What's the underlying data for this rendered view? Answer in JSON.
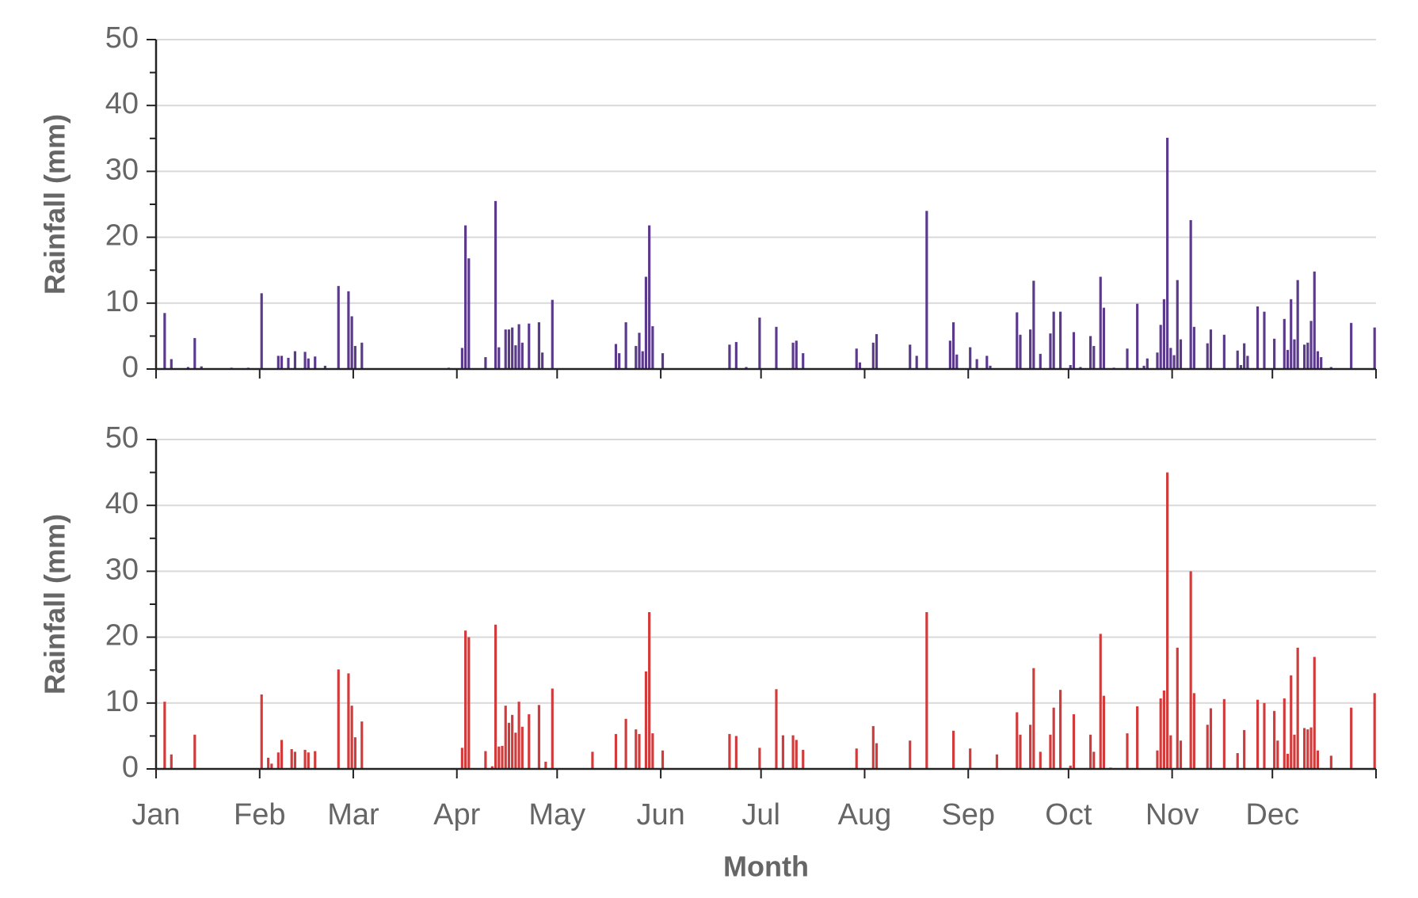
{
  "chart_data": [
    {
      "type": "bar",
      "ylabel": "Rainfall (mm)",
      "color": "#5b3a8c",
      "xlim": [
        0,
        365
      ],
      "ylim": [
        0,
        50
      ],
      "yticks": [
        0,
        10,
        20,
        30,
        40,
        50
      ],
      "grid": true,
      "x": [
        2,
        4,
        9,
        11,
        13,
        22,
        27,
        31,
        36,
        37,
        39,
        41,
        44,
        45,
        47,
        50,
        54,
        57,
        58,
        59,
        61,
        87,
        91,
        92,
        93,
        98,
        101,
        102,
        104,
        105,
        106,
        107,
        108,
        109,
        111,
        114,
        115,
        118,
        137,
        138,
        140,
        143,
        144,
        145,
        146,
        147,
        148,
        151,
        171,
        173,
        176,
        180,
        185,
        190,
        191,
        193,
        209,
        210,
        214,
        215,
        225,
        227,
        230,
        237,
        238,
        239,
        243,
        245,
        248,
        249,
        257,
        258,
        261,
        262,
        264,
        267,
        268,
        270,
        273,
        274,
        276,
        279,
        280,
        282,
        283,
        286,
        290,
        293,
        295,
        296,
        299,
        300,
        301,
        302,
        303,
        304,
        305,
        306,
        309,
        310,
        314,
        315,
        319,
        323,
        324,
        325,
        326,
        329,
        331,
        334,
        337,
        338,
        339,
        340,
        341,
        343,
        344,
        345,
        346,
        347,
        348,
        351,
        357,
        364
      ],
      "values": [
        8.5,
        1.5,
        0.3,
        4.7,
        0.4,
        0.2,
        0.2,
        11.5,
        2,
        2,
        1.7,
        2.7,
        2.6,
        1.6,
        1.9,
        0.5,
        12.6,
        11.8,
        8,
        3.5,
        4,
        0.2,
        3.2,
        21.8,
        16.8,
        1.8,
        25.5,
        3.3,
        6,
        6,
        6.3,
        3.6,
        6.8,
        4,
        6.9,
        7.1,
        2.5,
        10.5,
        3.8,
        2.4,
        7.1,
        3.5,
        5.5,
        2.7,
        14,
        21.8,
        6.5,
        2.4,
        3.7,
        4.1,
        0.3,
        7.8,
        6.4,
        4,
        4.3,
        2.4,
        3.1,
        1,
        4,
        5.3,
        3.7,
        2,
        24,
        4.3,
        7.1,
        2.2,
        3.3,
        1.5,
        2,
        0.5,
        8.6,
        5.2,
        6,
        13.4,
        2.3,
        5.4,
        8.7,
        8.7,
        0.6,
        5.6,
        0.3,
        5,
        3.5,
        14,
        9.3,
        0.2,
        3.1,
        9.9,
        0.5,
        1.6,
        2.5,
        6.7,
        10.6,
        35.1,
        3.2,
        2.1,
        13.5,
        4.5,
        22.6,
        6.4,
        3.9,
        6,
        5.2,
        2.8,
        0.6,
        3.9,
        2,
        9.5,
        8.7,
        4.6,
        7.6,
        2.9,
        10.6,
        4.5,
        13.5,
        3.7,
        4,
        7.3,
        14.8,
        2.7,
        1.8,
        0.3,
        7,
        6.3
      ]
    },
    {
      "type": "bar",
      "ylabel": "Rainfall (mm)",
      "xlabel": "Month",
      "color": "#d13b3b",
      "xlim": [
        0,
        365
      ],
      "ylim": [
        0,
        50
      ],
      "yticks": [
        0,
        10,
        20,
        30,
        40,
        50
      ],
      "grid": true,
      "xticks": [
        {
          "value": 0,
          "label": "Jan"
        },
        {
          "value": 31,
          "label": "Feb"
        },
        {
          "value": 59,
          "label": "Mar"
        },
        {
          "value": 90,
          "label": "Apr"
        },
        {
          "value": 120,
          "label": "May"
        },
        {
          "value": 151,
          "label": "Jun"
        },
        {
          "value": 181,
          "label": "Jul"
        },
        {
          "value": 212,
          "label": "Aug"
        },
        {
          "value": 243,
          "label": "Sep"
        },
        {
          "value": 273,
          "label": "Oct"
        },
        {
          "value": 304,
          "label": "Nov"
        },
        {
          "value": 334,
          "label": "Dec"
        }
      ],
      "x": [
        2,
        4,
        11,
        22,
        31,
        33,
        34,
        36,
        37,
        40,
        41,
        44,
        45,
        47,
        54,
        57,
        58,
        59,
        61,
        84,
        91,
        92,
        93,
        98,
        100,
        101,
        102,
        103,
        104,
        105,
        106,
        107,
        108,
        109,
        111,
        114,
        116,
        118,
        130,
        137,
        140,
        143,
        144,
        146,
        147,
        148,
        151,
        171,
        173,
        180,
        185,
        187,
        190,
        191,
        193,
        209,
        214,
        215,
        225,
        230,
        238,
        243,
        251,
        257,
        258,
        261,
        262,
        264,
        267,
        268,
        270,
        273,
        274,
        279,
        280,
        282,
        283,
        285,
        290,
        293,
        299,
        300,
        301,
        302,
        303,
        305,
        306,
        309,
        310,
        314,
        315,
        319,
        323,
        325,
        329,
        331,
        334,
        335,
        337,
        338,
        339,
        340,
        341,
        343,
        344,
        345,
        346,
        347,
        351,
        357,
        364
      ],
      "values": [
        10.2,
        2.2,
        5.2,
        0.1,
        11.3,
        1.7,
        0.8,
        2.5,
        4.4,
        3,
        2.6,
        2.9,
        2.5,
        2.7,
        15.1,
        14.5,
        9.6,
        4.8,
        7.2,
        0.1,
        3.2,
        21,
        20,
        2.7,
        0.4,
        21.9,
        3.4,
        3.5,
        9.6,
        7,
        8.2,
        5.5,
        10.2,
        6.4,
        8.3,
        9.7,
        1.1,
        12.2,
        2.6,
        5.3,
        7.6,
        6,
        5.3,
        14.8,
        23.8,
        5.4,
        2.8,
        5.3,
        5,
        3.2,
        12.1,
        5.1,
        5.1,
        4.4,
        2.9,
        3.1,
        6.5,
        3.9,
        4.3,
        23.8,
        5.8,
        3.1,
        2.2,
        8.6,
        5.2,
        6.7,
        15.3,
        2.6,
        5.2,
        9.3,
        12,
        0.5,
        8.3,
        5.2,
        2.6,
        20.5,
        11.1,
        0.2,
        5.4,
        9.5,
        2.8,
        10.7,
        11.9,
        45,
        5.1,
        18.4,
        4.3,
        30,
        11.5,
        6.7,
        9.2,
        10.6,
        2.4,
        5.9,
        10.5,
        10,
        8.8,
        4.3,
        10.7,
        2.3,
        14.2,
        5.2,
        18.4,
        6.2,
        6,
        6.3,
        17,
        2.8,
        2,
        9.3,
        11.5
      ]
    }
  ]
}
